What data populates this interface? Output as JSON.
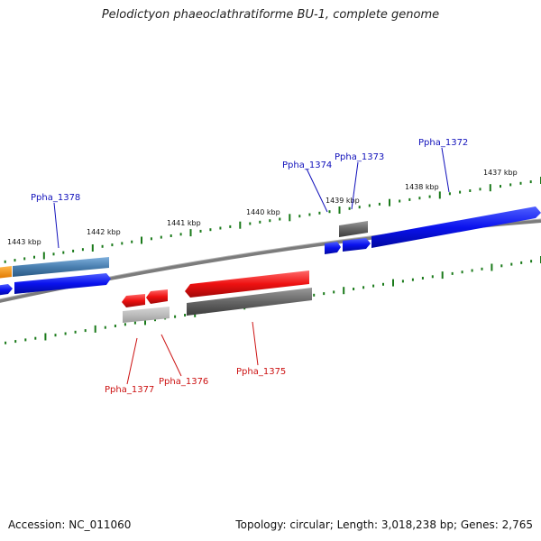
{
  "title": "Pelodictyon phaeoclathratiforme BU-1, complete genome",
  "footer": {
    "accession": "Accession: NC_011060",
    "summary": "Topology: circular; Length: 3,018,238 bp; Genes: 2,765"
  },
  "scale_labels": [
    "1443 kbp",
    "1442 kbp",
    "1441 kbp",
    "1440 kbp",
    "1439 kbp",
    "1438 kbp",
    "1437 kbp"
  ],
  "gene_labels": {
    "Ppha_1378": "Ppha_1378",
    "Ppha_1374": "Ppha_1374",
    "Ppha_1373": "Ppha_1373",
    "Ppha_1372": "Ppha_1372",
    "Ppha_1377": "Ppha_1377",
    "Ppha_1376": "Ppha_1376",
    "Ppha_1375": "Ppha_1375"
  },
  "colors": {
    "forward": "#0a12ee",
    "reverse": "#ee1111",
    "steel": "#4a7fb0",
    "orange": "#f08c10",
    "gray": "#6a6a6a",
    "light_gray": "#b9b9b9",
    "tick": "#1a7a1a",
    "backbone": "#8a8a8a",
    "label_forward": "#1111bb",
    "label_reverse": "#cc1111"
  }
}
